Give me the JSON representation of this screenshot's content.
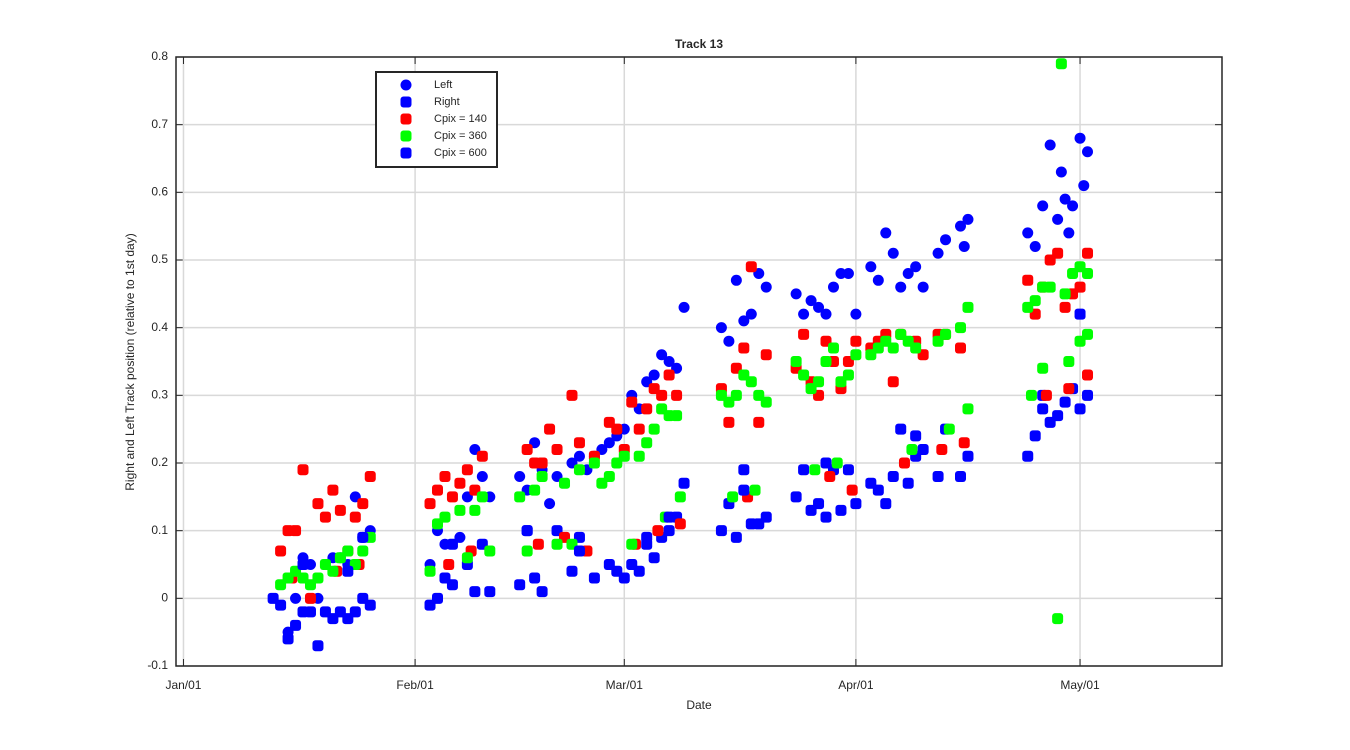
{
  "chart_data": {
    "type": "scatter",
    "title": "Track 13",
    "xlabel": "Date",
    "ylabel": "Right and Left Track position (relative to 1st day)",
    "xlim": [
      -1,
      139
    ],
    "xticks": [
      {
        "value": 0,
        "label": "Jan/01"
      },
      {
        "value": 31,
        "label": "Feb/01"
      },
      {
        "value": 59,
        "label": "Mar/01"
      },
      {
        "value": 90,
        "label": "Apr/01"
      },
      {
        "value": 120,
        "label": "May/01"
      }
    ],
    "ylim": [
      -0.1,
      0.8
    ],
    "yticks": [
      -0.1,
      0,
      0.1,
      0.2,
      0.3,
      0.4,
      0.5,
      0.6,
      0.7,
      0.8
    ],
    "grid": true,
    "legend": "upper left",
    "series": [
      {
        "name": "Left",
        "color": "#0000ff",
        "marker": "o",
        "x": [
          14,
          15,
          16,
          17,
          18,
          20,
          21,
          22,
          23,
          24,
          25,
          33,
          34,
          35,
          37,
          38,
          39,
          40,
          41,
          45,
          46,
          47,
          48,
          49,
          50,
          52,
          53,
          54,
          55,
          56,
          57,
          58,
          59,
          60,
          61,
          62,
          63,
          64,
          65,
          66,
          67,
          72,
          73,
          74,
          75,
          76,
          77,
          78,
          82,
          83,
          84,
          85,
          86,
          87,
          88,
          89,
          90,
          92,
          93,
          94,
          95,
          96,
          97,
          98,
          99,
          101,
          102,
          104,
          105,
          104.5,
          113,
          114,
          115,
          116,
          117,
          117.5,
          118,
          118.5,
          119,
          120,
          120.5,
          121
        ],
        "values": [
          -0.05,
          0.0,
          0.06,
          0.05,
          0.0,
          0.06,
          0.06,
          0.05,
          0.15,
          0.09,
          0.1,
          0.05,
          0.1,
          0.08,
          0.09,
          0.15,
          0.22,
          0.18,
          0.15,
          0.18,
          0.16,
          0.23,
          0.19,
          0.14,
          0.18,
          0.2,
          0.21,
          0.19,
          0.21,
          0.22,
          0.23,
          0.24,
          0.25,
          0.3,
          0.28,
          0.32,
          0.33,
          0.36,
          0.35,
          0.34,
          0.43,
          0.4,
          0.38,
          0.47,
          0.41,
          0.42,
          0.48,
          0.46,
          0.45,
          0.42,
          0.44,
          0.43,
          0.42,
          0.46,
          0.48,
          0.48,
          0.42,
          0.49,
          0.47,
          0.54,
          0.51,
          0.46,
          0.48,
          0.49,
          0.46,
          0.51,
          0.53,
          0.55,
          0.56,
          0.52,
          0.54,
          0.52,
          0.58,
          0.67,
          0.56,
          0.63,
          0.59,
          0.54,
          0.58,
          0.68,
          0.61,
          0.66
        ]
      },
      {
        "name": "Right",
        "color": "#0000ff",
        "marker": "s",
        "x": [
          12,
          13,
          14,
          15,
          16,
          17,
          18,
          19,
          20,
          21,
          22,
          23,
          24,
          25,
          33,
          34,
          35,
          36,
          38,
          39,
          40,
          41,
          45,
          46,
          47,
          48,
          50,
          52,
          53,
          55,
          57,
          58,
          59,
          60,
          61,
          62,
          63,
          64,
          65,
          66,
          67,
          72,
          73,
          74,
          75,
          76,
          77,
          78,
          82,
          83,
          84,
          85,
          86,
          87,
          88,
          89,
          90,
          92,
          93,
          94,
          95,
          96,
          97,
          98,
          99,
          101,
          102,
          104,
          105,
          113,
          114,
          115,
          116,
          117,
          118,
          119,
          120,
          121
        ],
        "values": [
          0.0,
          -0.01,
          -0.06,
          -0.04,
          -0.02,
          -0.02,
          -0.07,
          -0.02,
          -0.03,
          -0.02,
          -0.03,
          -0.02,
          0.0,
          -0.01,
          -0.01,
          0.0,
          0.03,
          0.02,
          0.05,
          0.01,
          0.08,
          0.01,
          0.02,
          0.1,
          0.03,
          0.01,
          0.1,
          0.04,
          0.09,
          0.03,
          0.05,
          0.04,
          0.03,
          0.05,
          0.04,
          0.08,
          0.06,
          0.09,
          0.1,
          0.12,
          0.17,
          0.1,
          0.14,
          0.09,
          0.19,
          0.11,
          0.11,
          0.12,
          0.15,
          0.19,
          0.13,
          0.14,
          0.12,
          0.19,
          0.13,
          0.19,
          0.14,
          0.17,
          0.16,
          0.14,
          0.18,
          0.25,
          0.17,
          0.21,
          0.22,
          0.18,
          0.25,
          0.18,
          0.21,
          0.21,
          0.24,
          0.3,
          0.26,
          0.27,
          0.29,
          0.31,
          0.28,
          0.3
        ]
      },
      {
        "name": "Cpix = 140",
        "color": "#ff0000",
        "marker": "s",
        "x": [
          13,
          14,
          15,
          16,
          17,
          18,
          19,
          20,
          21,
          22,
          23,
          24,
          25,
          14.5,
          20.5,
          23.5,
          33,
          34,
          35,
          36,
          37,
          38,
          39,
          40,
          35.5,
          38.5,
          46,
          47,
          48,
          49,
          50,
          52,
          53,
          55,
          47.5,
          51,
          54,
          57,
          58,
          59,
          60,
          61,
          62,
          63,
          64,
          65,
          66,
          60.5,
          63.5,
          66.5,
          72,
          73,
          74,
          75,
          76,
          77,
          78,
          75.5,
          82,
          83,
          84,
          85,
          86,
          87,
          88,
          89,
          90,
          86.5,
          89.5,
          92,
          93,
          94,
          95,
          96,
          98,
          99,
          101,
          102,
          104,
          96.5,
          101.5,
          104.5,
          113,
          114,
          115,
          116,
          117,
          118,
          119,
          120,
          121,
          115.5,
          118.5,
          121
        ],
        "values": [
          0.07,
          0.1,
          0.1,
          0.19,
          0.0,
          0.14,
          0.12,
          0.16,
          0.13,
          0.07,
          0.12,
          0.14,
          0.18,
          0.03,
          0.04,
          0.05,
          0.14,
          0.16,
          0.18,
          0.15,
          0.17,
          0.19,
          0.16,
          0.21,
          0.05,
          0.07,
          0.22,
          0.2,
          0.2,
          0.25,
          0.22,
          0.3,
          0.23,
          0.21,
          0.08,
          0.09,
          0.07,
          0.26,
          0.25,
          0.22,
          0.29,
          0.25,
          0.28,
          0.31,
          0.3,
          0.33,
          0.3,
          0.08,
          0.1,
          0.11,
          0.31,
          0.26,
          0.34,
          0.37,
          0.49,
          0.26,
          0.36,
          0.15,
          0.34,
          0.39,
          0.32,
          0.3,
          0.38,
          0.35,
          0.31,
          0.35,
          0.38,
          0.18,
          0.16,
          0.37,
          0.38,
          0.39,
          0.32,
          0.39,
          0.38,
          0.36,
          0.39,
          0.39,
          0.37,
          0.2,
          0.22,
          0.23,
          0.47,
          0.42,
          0.46,
          0.5,
          0.51,
          0.43,
          0.45,
          0.46,
          0.51,
          0.3,
          0.31,
          0.33
        ]
      },
      {
        "name": "Cpix = 360",
        "color": "#00ff00",
        "marker": "s",
        "x": [
          13,
          14,
          15,
          16,
          17,
          19,
          20,
          21,
          22,
          23,
          24,
          25,
          18,
          33,
          34,
          35,
          37,
          38,
          39,
          40,
          41,
          45,
          46,
          47,
          48,
          50,
          51,
          53,
          55,
          52,
          56,
          57,
          58,
          59,
          60,
          61,
          62,
          63,
          64,
          65,
          66,
          64.5,
          66.5,
          72,
          73,
          74,
          75,
          76,
          77,
          78,
          73.5,
          76.5,
          82,
          83,
          84,
          85,
          86,
          87,
          88,
          89,
          90,
          84.5,
          87.5,
          92,
          93,
          94,
          95,
          96,
          97,
          98,
          101,
          102,
          104,
          105,
          97.5,
          102.5,
          105,
          113,
          114,
          115,
          116,
          117,
          117.5,
          118,
          119,
          120,
          121,
          113.5,
          115,
          118.5,
          120,
          121
        ],
        "values": [
          0.02,
          0.03,
          0.04,
          0.03,
          0.02,
          0.05,
          0.04,
          0.06,
          0.07,
          0.05,
          0.07,
          0.09,
          0.03,
          0.04,
          0.11,
          0.12,
          0.13,
          0.06,
          0.13,
          0.15,
          0.07,
          0.15,
          0.07,
          0.16,
          0.18,
          0.08,
          0.17,
          0.19,
          0.2,
          0.08,
          0.17,
          0.18,
          0.2,
          0.21,
          0.08,
          0.21,
          0.23,
          0.25,
          0.28,
          0.27,
          0.27,
          0.12,
          0.15,
          0.3,
          0.29,
          0.3,
          0.33,
          0.32,
          0.3,
          0.29,
          0.15,
          0.16,
          0.35,
          0.33,
          0.31,
          0.32,
          0.35,
          0.37,
          0.32,
          0.33,
          0.36,
          0.19,
          0.2,
          0.36,
          0.37,
          0.38,
          0.37,
          0.39,
          0.38,
          0.37,
          0.38,
          0.39,
          0.4,
          0.43,
          0.22,
          0.25,
          0.28,
          0.43,
          0.44,
          0.46,
          0.46,
          -0.03,
          0.79,
          0.45,
          0.48,
          0.49,
          0.48,
          0.3,
          0.34,
          0.35,
          0.38,
          0.39
        ]
      },
      {
        "name": "Cpix = 600",
        "color": "#0000ff",
        "marker": "s",
        "x": [
          16,
          22,
          24,
          36,
          46,
          53,
          62,
          65,
          75,
          86,
          98,
          115,
          120
        ],
        "values": [
          0.05,
          0.04,
          0.09,
          0.08,
          0.1,
          0.07,
          0.09,
          0.12,
          0.16,
          0.2,
          0.24,
          0.28,
          0.42
        ]
      }
    ]
  }
}
